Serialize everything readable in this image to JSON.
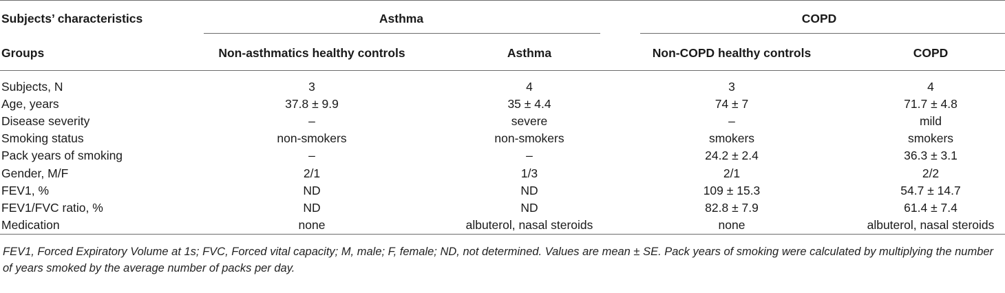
{
  "table": {
    "header": {
      "characteristics_label": "Subjects’ characteristics",
      "group_asthma": "Asthma",
      "group_copd": "COPD",
      "groups_label": "Groups",
      "columns": [
        "Non-asthmatics healthy controls",
        "Asthma",
        "Non-COPD healthy controls",
        "COPD"
      ]
    },
    "rows": [
      {
        "label": "Subjects, N",
        "values": [
          "3",
          "4",
          "3",
          "4"
        ]
      },
      {
        "label": "Age, years",
        "values": [
          "37.8 ± 9.9",
          "35 ± 4.4",
          "74 ± 7",
          "71.7 ± 4.8"
        ]
      },
      {
        "label": "Disease severity",
        "values": [
          "–",
          "severe",
          "–",
          "mild"
        ]
      },
      {
        "label": "Smoking status",
        "values": [
          "non-smokers",
          "non-smokers",
          "smokers",
          "smokers"
        ]
      },
      {
        "label": "Pack years of smoking",
        "values": [
          "–",
          "–",
          "24.2 ± 2.4",
          "36.3 ± 3.1"
        ]
      },
      {
        "label": "Gender, M/F",
        "values": [
          "2/1",
          "1/3",
          "2/1",
          "2/2"
        ]
      },
      {
        "label": "FEV1, %",
        "values": [
          "ND",
          "ND",
          "109 ± 15.3",
          "54.7 ± 14.7"
        ]
      },
      {
        "label": "FEV1/FVC ratio, %",
        "values": [
          "ND",
          "ND",
          "82.8 ± 7.9",
          "61.4 ± 7.4"
        ]
      },
      {
        "label": "Medication",
        "values": [
          "none",
          "albuterol, nasal steroids",
          "none",
          "albuterol, nasal steroids"
        ]
      }
    ],
    "footnote": "FEV1, Forced Expiratory Volume at 1s; FVC, Forced vital capacity; M, male; F, female; ND, not determined. Values are mean ± SE. Pack years of smoking were calculated by multiplying the number of years smoked by the average number of packs per day."
  }
}
